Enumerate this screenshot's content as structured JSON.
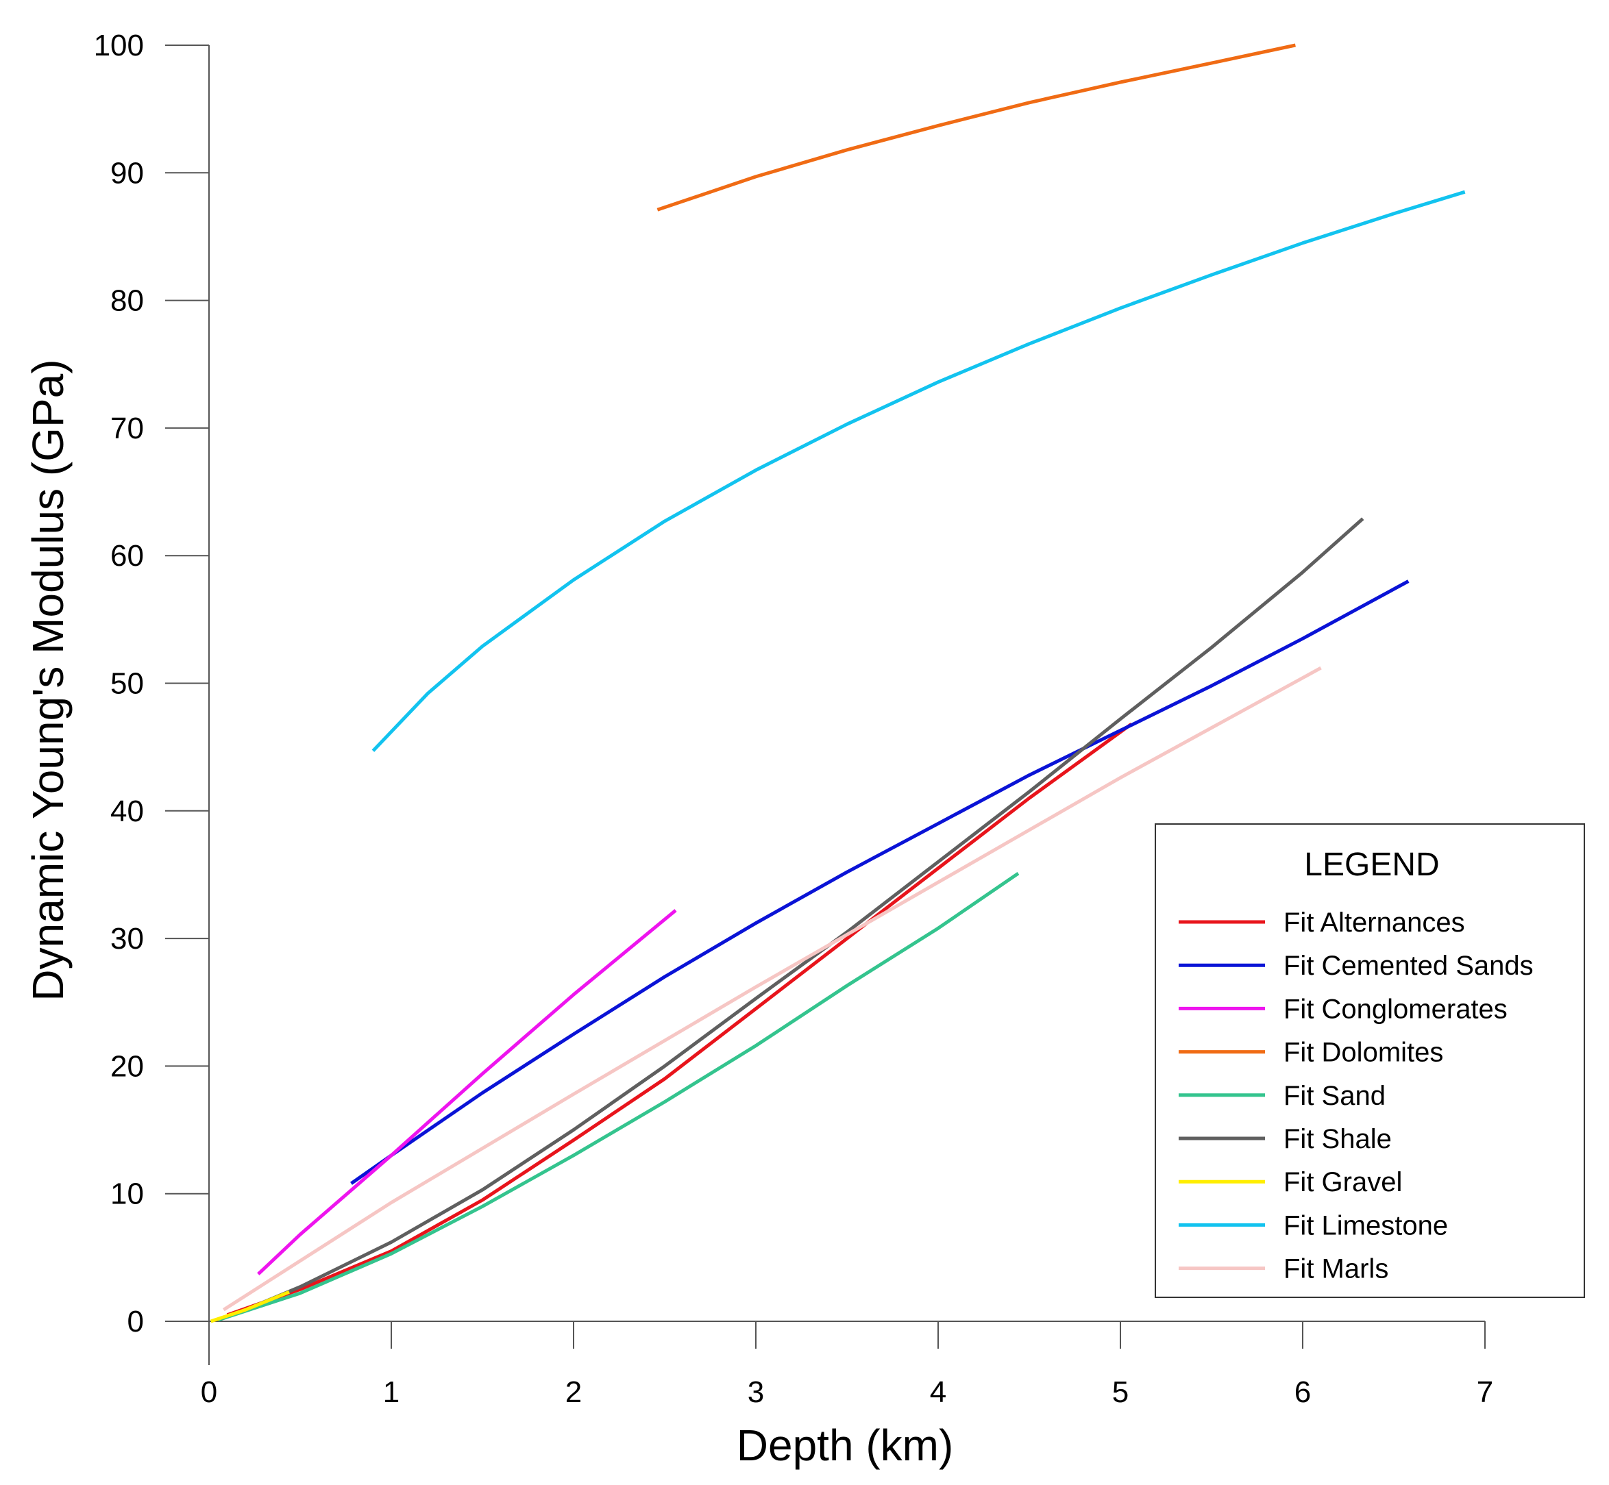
{
  "chart_data": {
    "type": "line",
    "title": "",
    "xlabel": "Depth (km)",
    "ylabel": "Dynamic Young's Modulus (GPa)",
    "xlim": [
      0,
      7
    ],
    "ylim": [
      0,
      100
    ],
    "xticks": [
      "0",
      "1",
      "2",
      "3",
      "4",
      "5",
      "6",
      "7"
    ],
    "yticks": [
      "0",
      "10",
      "20",
      "30",
      "40",
      "50",
      "60",
      "70",
      "80",
      "90",
      "100"
    ],
    "grid": false,
    "legend": {
      "title": "LEGEND",
      "position": "lower-right"
    },
    "series": [
      {
        "name": "Fit Alternances",
        "color": "#e8141b",
        "x": [
          0.1,
          0.5,
          1,
          1.5,
          2,
          2.5,
          3,
          3.5,
          4,
          4.5,
          5.06
        ],
        "y": [
          0.5,
          2.5,
          5.5,
          9.5,
          14.2,
          19,
          24.5,
          30,
          35.5,
          41,
          46.8
        ]
      },
      {
        "name": "Fit Cemented Sands",
        "color": "#0a13d6",
        "x": [
          0.78,
          1,
          1.5,
          2,
          2.5,
          3,
          3.5,
          4,
          4.5,
          5,
          5.5,
          6,
          6.58
        ],
        "y": [
          10.8,
          13,
          17.9,
          22.5,
          27,
          31.2,
          35.2,
          39,
          42.8,
          46.3,
          49.8,
          53.5,
          58
        ]
      },
      {
        "name": "Fit Conglomerates",
        "color": "#ee14ee",
        "x": [
          0.27,
          0.5,
          1,
          1.5,
          2,
          2.56
        ],
        "y": [
          3.7,
          6.8,
          13,
          19.4,
          25.6,
          32.2
        ]
      },
      {
        "name": "Fit Dolomites",
        "color": "#f06b14",
        "x": [
          2.46,
          3,
          3.5,
          4,
          4.5,
          5,
          5.5,
          5.96
        ],
        "y": [
          87.1,
          89.7,
          91.8,
          93.7,
          95.5,
          97.1,
          98.6,
          100
        ]
      },
      {
        "name": "Fit Sand",
        "color": "#34c48e",
        "x": [
          0.05,
          0.5,
          1,
          1.5,
          2,
          2.5,
          3,
          3.5,
          4,
          4.44
        ],
        "y": [
          0.1,
          2.2,
          5.3,
          9,
          13,
          17.2,
          21.6,
          26.3,
          30.8,
          35.1
        ]
      },
      {
        "name": "Fit Shale",
        "color": "#5f5f5f",
        "x": [
          0.25,
          0.5,
          1,
          1.5,
          2,
          2.5,
          3,
          3.5,
          4,
          4.5,
          5,
          5.5,
          6,
          6.33
        ],
        "y": [
          1.2,
          2.7,
          6.2,
          10.3,
          15,
          20,
          25.3,
          30.5,
          36,
          41.5,
          47.2,
          52.8,
          58.7,
          62.9
        ]
      },
      {
        "name": "Fit Gravel",
        "color": "#ffee00",
        "x": [
          0.01,
          0.2,
          0.44
        ],
        "y": [
          0,
          0.9,
          2.3
        ]
      },
      {
        "name": "Fit Limestone",
        "color": "#12c3ef",
        "x": [
          0.9,
          1.2,
          1.5,
          2,
          2.5,
          3,
          3.5,
          4,
          4.5,
          5,
          5.5,
          6,
          6.5,
          6.89
        ],
        "y": [
          44.7,
          49.2,
          52.9,
          58.1,
          62.7,
          66.7,
          70.3,
          73.6,
          76.6,
          79.4,
          82,
          84.5,
          86.8,
          88.5
        ]
      },
      {
        "name": "Fit Marls",
        "color": "#f6c6c4",
        "x": [
          0.08,
          1,
          2,
          3,
          4,
          5,
          6.1
        ],
        "y": [
          0.9,
          9.3,
          17.8,
          26.2,
          34.4,
          42.6,
          51.2
        ]
      }
    ]
  }
}
